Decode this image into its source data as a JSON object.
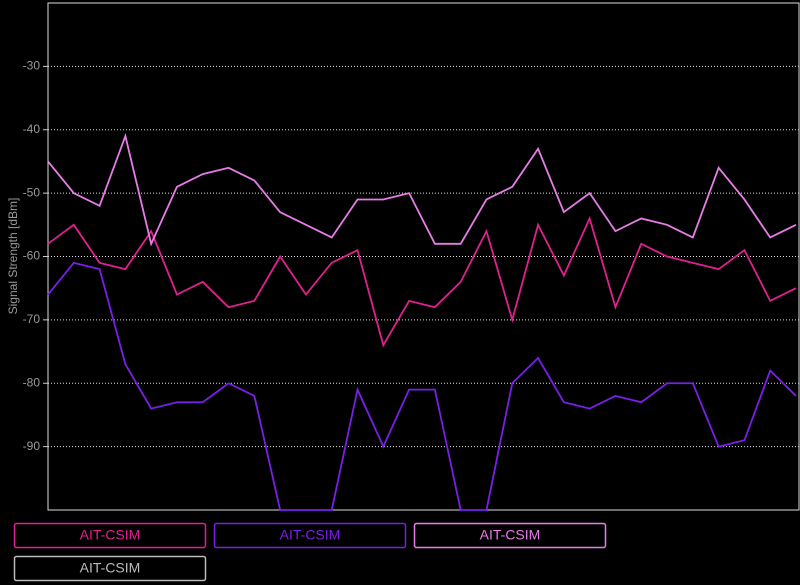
{
  "chart_data": {
    "type": "line",
    "y_label": "Signal Strength [dBm]",
    "x": [
      0,
      1,
      2,
      3,
      4,
      5,
      6,
      7,
      8,
      9,
      10,
      11,
      12,
      13,
      14,
      15,
      16,
      17,
      18,
      19,
      20,
      21,
      22,
      23,
      24,
      25,
      26,
      27,
      28,
      29
    ],
    "xlim": [
      0,
      29
    ],
    "ylim": [
      -100,
      -20
    ],
    "yticks": [
      -90,
      -80,
      -70,
      -60,
      -50,
      -40,
      -30
    ],
    "grid": true,
    "series": [
      {
        "name": "AIT-CSIM",
        "color": "#e0208f",
        "values": [
          -58,
          -55,
          -61,
          -62,
          -56,
          -66,
          -64,
          -68,
          -67,
          -60,
          -66,
          -61,
          -59,
          -74,
          -67,
          -68,
          -64,
          -56,
          -70,
          -55,
          -63,
          -54,
          -68,
          -58,
          -60,
          -61,
          -62,
          -59,
          -67,
          -65
        ]
      },
      {
        "name": "AIT-CSIM",
        "color": "#7a1fe8",
        "values": [
          -66,
          -61,
          -62,
          -77,
          -84,
          -83,
          -83,
          -80,
          -82,
          -100,
          -100,
          -100,
          -81,
          -90,
          -81,
          -81,
          -100,
          -100,
          -80,
          -76,
          -83,
          -84,
          -82,
          -83,
          -80,
          -80,
          -90,
          -89,
          -78,
          -82
        ]
      },
      {
        "name": "AIT-CSIM",
        "color": "#e77de6",
        "values": [
          -45,
          -50,
          -52,
          -41,
          -58,
          -49,
          -47,
          -46,
          -48,
          -53,
          -55,
          -57,
          -51,
          -51,
          -50,
          -58,
          -58,
          -51,
          -49,
          -43,
          -53,
          -50,
          -56,
          -54,
          -55,
          -57,
          -46,
          -51,
          -57,
          -55
        ]
      },
      {
        "name": "AIT-CSIM",
        "color": "#bbbbbb",
        "values": [
          null,
          null,
          null,
          null,
          null,
          null,
          null,
          null,
          null,
          null,
          null,
          null,
          null,
          null,
          null,
          null,
          null,
          null,
          null,
          null,
          null,
          null,
          null,
          null,
          null,
          null,
          null,
          null,
          null,
          null
        ]
      }
    ]
  }
}
